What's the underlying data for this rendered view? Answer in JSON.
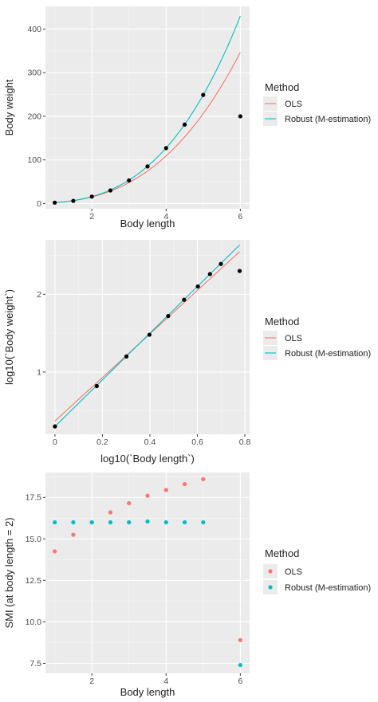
{
  "chart_data": [
    {
      "type": "scatter",
      "xlabel": "Body length",
      "ylabel": "Body weight",
      "xlim": [
        0.75,
        6.25
      ],
      "ylim": [
        -12,
        452
      ],
      "xticks": [
        2,
        4,
        6
      ],
      "xticks_minor": [
        1,
        3,
        5
      ],
      "yticks": [
        0,
        100,
        200,
        300,
        400
      ],
      "yticks_minor": [
        50,
        150,
        250,
        350
      ],
      "points": {
        "x": [
          1,
          1.5,
          2,
          2.5,
          3,
          3.5,
          4,
          4.5,
          5,
          6
        ],
        "y": [
          2,
          6,
          16,
          30,
          53,
          85,
          127,
          181,
          249,
          200
        ]
      },
      "lines": [
        {
          "name": "OLS",
          "model": "power",
          "a": 2.1,
          "b": 2.85,
          "x_range": [
            1,
            6
          ]
        },
        {
          "name": "Robust (M-estimation)",
          "model": "power",
          "a": 1.99,
          "b": 3.0,
          "x_range": [
            1,
            6
          ]
        }
      ],
      "legend": {
        "title": "Method",
        "position": "right",
        "style": "line"
      },
      "grid": true
    },
    {
      "type": "scatter",
      "xlabel": "log10(`Body length`)",
      "ylabel": "log10(`Body weight`)",
      "xlim": [
        -0.04,
        0.82
      ],
      "ylim": [
        0.2,
        2.7
      ],
      "xticks": [
        0.0,
        0.2,
        0.4,
        0.6,
        0.8
      ],
      "xticks_minor": [
        0.1,
        0.3,
        0.5,
        0.7
      ],
      "yticks": [
        1,
        2
      ],
      "yticks_minor": [
        0.5,
        1.5,
        2.5
      ],
      "points": {
        "x": [
          0.0,
          0.176,
          0.301,
          0.398,
          0.477,
          0.544,
          0.602,
          0.653,
          0.699,
          0.778
        ],
        "y": [
          0.301,
          0.82,
          1.2,
          1.48,
          1.72,
          1.93,
          2.1,
          2.26,
          2.39,
          2.3
        ]
      },
      "lines": [
        {
          "name": "OLS",
          "model": "linear",
          "intercept": 0.37,
          "slope": 2.8,
          "x_range": [
            0,
            0.778
          ]
        },
        {
          "name": "Robust (M-estimation)",
          "model": "linear",
          "intercept": 0.3,
          "slope": 3.0,
          "x_range": [
            0,
            0.778
          ]
        }
      ],
      "legend": {
        "title": "Method",
        "position": "right",
        "style": "line"
      },
      "grid": true
    },
    {
      "type": "scatter",
      "xlabel": "Body length",
      "ylabel": "SMI (at body length = 2)",
      "xlim": [
        0.75,
        6.25
      ],
      "ylim": [
        6.9,
        19.0
      ],
      "xticks": [
        2,
        4,
        6
      ],
      "xticks_minor": [
        1,
        3,
        5
      ],
      "yticks": [
        7.5,
        10.0,
        12.5,
        15.0,
        17.5
      ],
      "ytick_labels": [
        "7.5",
        "10.0",
        "12.5",
        "15.0",
        "17.5"
      ],
      "yticks_minor": [
        8.75,
        11.25,
        13.75,
        16.25,
        18.75
      ],
      "x": [
        1,
        1.5,
        2,
        2.5,
        3,
        3.5,
        4,
        4.5,
        5,
        6
      ],
      "series": [
        {
          "name": "OLS",
          "values": [
            14.25,
            15.25,
            16.0,
            16.6,
            17.15,
            17.6,
            17.95,
            18.3,
            18.6,
            8.9
          ]
        },
        {
          "name": "Robust (M-estimation)",
          "values": [
            16.0,
            16.0,
            16.0,
            16.0,
            16.0,
            16.05,
            16.0,
            16.0,
            16.0,
            7.4
          ]
        }
      ],
      "legend": {
        "title": "Method",
        "position": "right",
        "style": "point"
      },
      "grid": true
    }
  ],
  "colors": {
    "OLS": "#f8766d",
    "Robust": "#00bfc4",
    "panel": "#ebebeb",
    "grid_major": "#ffffff",
    "grid_minor": "#f5f5f5",
    "points": "#000000"
  }
}
